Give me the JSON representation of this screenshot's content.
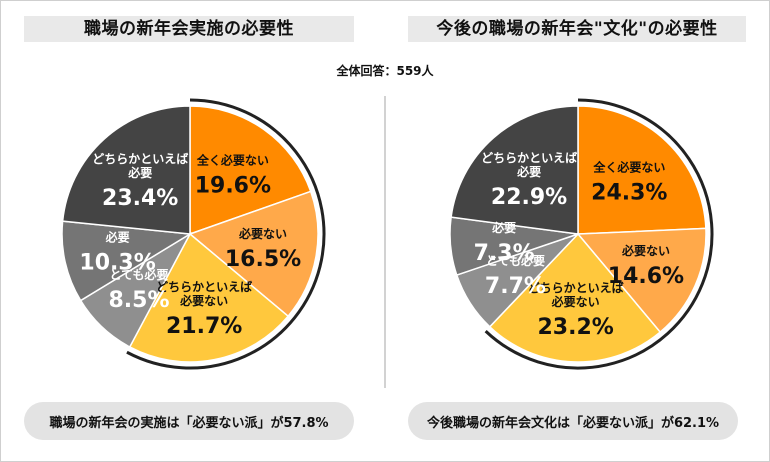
{
  "respondents": "全体回答：559人",
  "colors": {
    "dark": "#444444",
    "orange": "#ff8a00",
    "light_orange": "#ffa94a",
    "yellow": "#ffc83d",
    "gray": "#8f8f8f",
    "mid_gray": "#757575",
    "outline": "#222222"
  },
  "chart_data": [
    {
      "type": "pie",
      "title": "職場の新年会実施の必要性",
      "summary": "職場の新年会の実施は「必要ない派」が57.8%",
      "slices": [
        {
          "label_lines": [
            "全く必要ない"
          ],
          "value": 19.6,
          "pct": "19.6%",
          "color": "#ff8a00",
          "text_color": "#111111"
        },
        {
          "label_lines": [
            "必要ない"
          ],
          "value": 16.5,
          "pct": "16.5%",
          "color": "#ffa94a",
          "text_color": "#111111"
        },
        {
          "label_lines": [
            "どちらかといえば",
            "必要ない"
          ],
          "value": 21.7,
          "pct": "21.7%",
          "color": "#ffc83d",
          "text_color": "#111111"
        },
        {
          "label_lines": [
            "とても必要"
          ],
          "value": 8.5,
          "pct": "8.5%",
          "color": "#8f8f8f",
          "text_color": "#ffffff"
        },
        {
          "label_lines": [
            "必要"
          ],
          "value": 10.3,
          "pct": "10.3%",
          "color": "#757575",
          "text_color": "#ffffff"
        },
        {
          "label_lines": [
            "どちらかといえば",
            "必要"
          ],
          "value": 23.4,
          "pct": "23.4%",
          "color": "#444444",
          "text_color": "#ffffff"
        }
      ]
    },
    {
      "type": "pie",
      "title": "今後の職場の新年会\"文化\"の必要性",
      "summary": "今後職場の新年会文化は「必要ない派」が62.1%",
      "slices": [
        {
          "label_lines": [
            "全く必要ない"
          ],
          "value": 24.3,
          "pct": "24.3%",
          "color": "#ff8a00",
          "text_color": "#111111"
        },
        {
          "label_lines": [
            "必要ない"
          ],
          "value": 14.6,
          "pct": "14.6%",
          "color": "#ffa94a",
          "text_color": "#111111"
        },
        {
          "label_lines": [
            "どちらかといえば",
            "必要ない"
          ],
          "value": 23.2,
          "pct": "23.2%",
          "color": "#ffc83d",
          "text_color": "#111111"
        },
        {
          "label_lines": [
            "とても必要"
          ],
          "value": 7.7,
          "pct": "7.7%",
          "color": "#8f8f8f",
          "text_color": "#ffffff"
        },
        {
          "label_lines": [
            "必要"
          ],
          "value": 7.3,
          "pct": "7.3%",
          "color": "#757575",
          "text_color": "#ffffff"
        },
        {
          "label_lines": [
            "どちらかといえば",
            "必要"
          ],
          "value": 22.9,
          "pct": "22.9%",
          "color": "#444444",
          "text_color": "#ffffff"
        }
      ]
    }
  ]
}
